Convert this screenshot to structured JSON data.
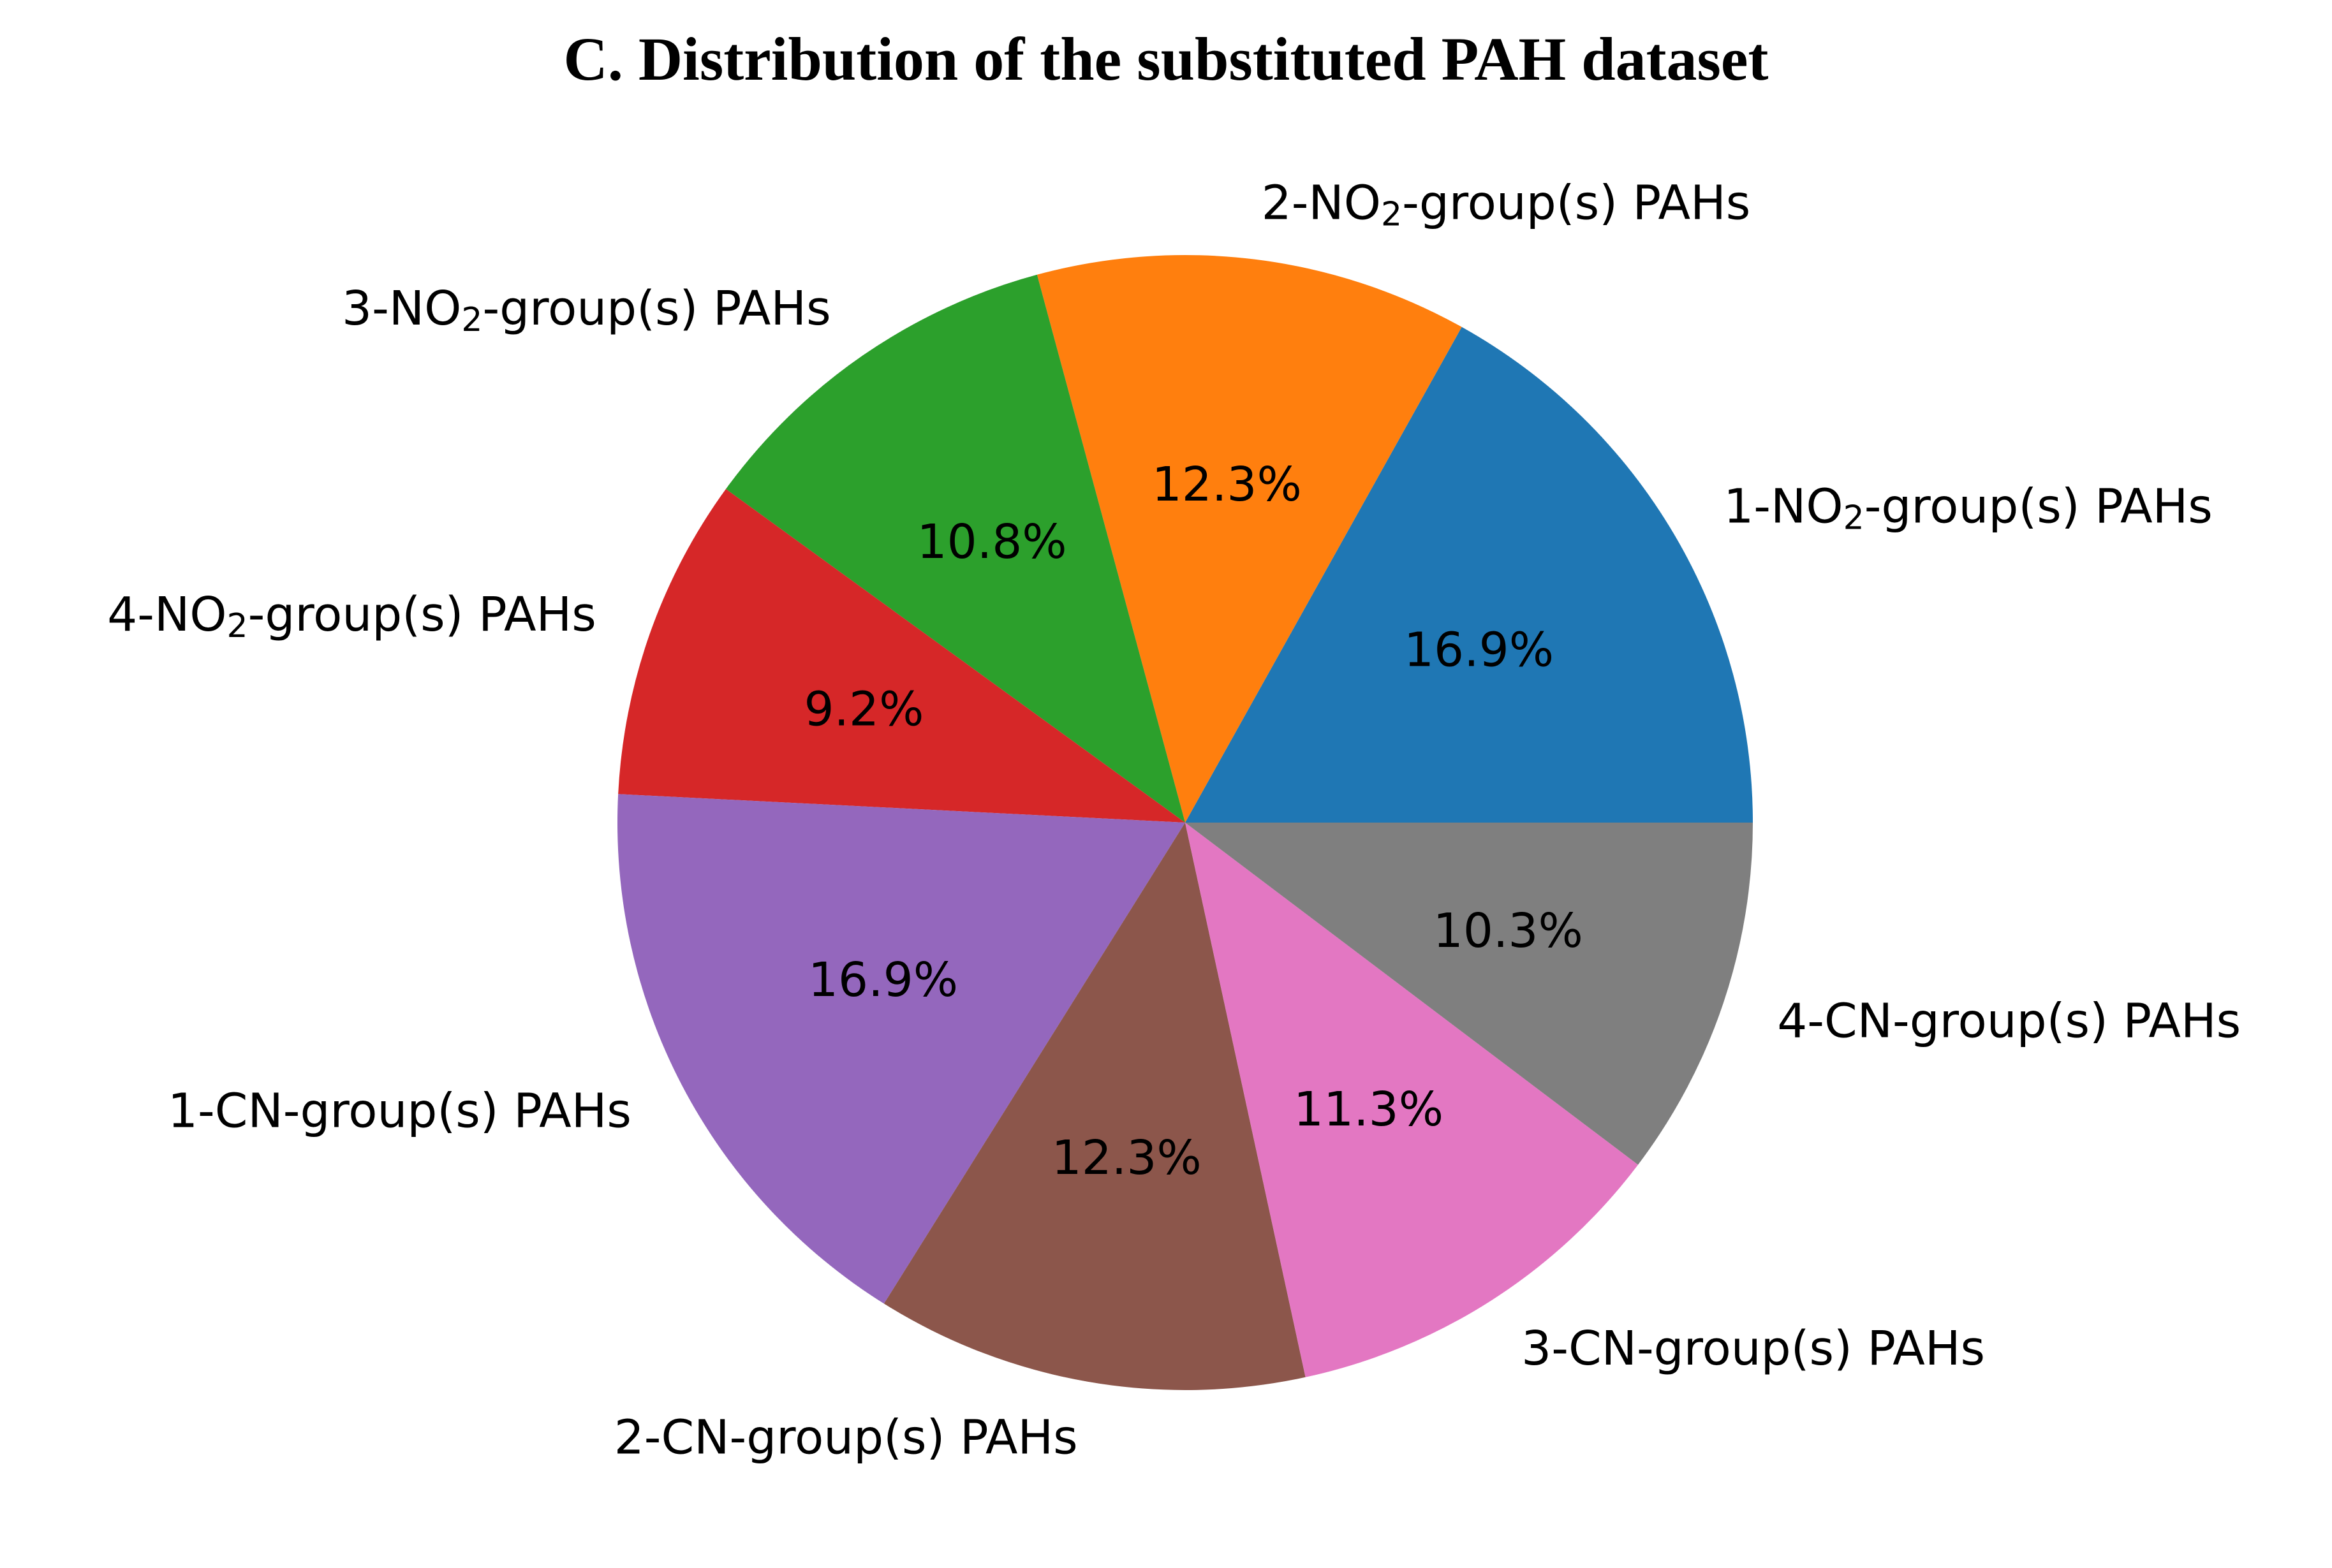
{
  "chart_data": {
    "type": "pie",
    "title": "C. Distribution of the substituted PAH dataset",
    "start_angle_deg": 0,
    "direction": "counterclockwise",
    "slices": [
      {
        "label_prefix": "1-NO",
        "label_sub": "2",
        "label_suffix": "-group(s) PAHs",
        "percent": 16.9,
        "pct_text": "16.9%",
        "color": "#1f77b4"
      },
      {
        "label_prefix": "2-NO",
        "label_sub": "2",
        "label_suffix": "-group(s) PAHs",
        "percent": 12.3,
        "pct_text": "12.3%",
        "color": "#ff7f0e"
      },
      {
        "label_prefix": "3-NO",
        "label_sub": "2",
        "label_suffix": "-group(s) PAHs",
        "percent": 10.8,
        "pct_text": "10.8%",
        "color": "#2ca02c"
      },
      {
        "label_prefix": "4-NO",
        "label_sub": "2",
        "label_suffix": "-group(s) PAHs",
        "percent": 9.2,
        "pct_text": "9.2%",
        "color": "#d62728"
      },
      {
        "label_prefix": "1-CN-group(s) PAHs",
        "label_sub": "",
        "label_suffix": "",
        "percent": 16.9,
        "pct_text": "16.9%",
        "color": "#9467bd"
      },
      {
        "label_prefix": "2-CN-group(s) PAHs",
        "label_sub": "",
        "label_suffix": "",
        "percent": 12.3,
        "pct_text": "12.3%",
        "color": "#8c564b"
      },
      {
        "label_prefix": "3-CN-group(s) PAHs",
        "label_sub": "",
        "label_suffix": "",
        "percent": 11.3,
        "pct_text": "11.3%",
        "color": "#e377c2"
      },
      {
        "label_prefix": "4-CN-group(s) PAHs",
        "label_sub": "",
        "label_suffix": "",
        "percent": 10.3,
        "pct_text": "10.3%",
        "color": "#7f7f7f"
      }
    ]
  }
}
